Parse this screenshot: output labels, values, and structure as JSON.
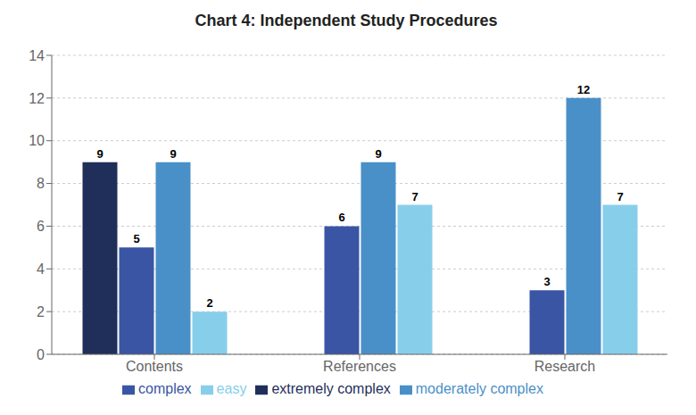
{
  "chart_data": {
    "type": "bar",
    "title": "Chart 4: Independent Study Procedures",
    "categories": [
      "Contents",
      "References",
      "Research"
    ],
    "series": [
      {
        "name": "extremely complex",
        "color": "#1f2f5a",
        "values": [
          9,
          0,
          0
        ]
      },
      {
        "name": "complex",
        "color": "#3a55a4",
        "values": [
          5,
          6,
          3
        ]
      },
      {
        "name": "moderately complex",
        "color": "#4a90c8",
        "values": [
          9,
          9,
          12
        ]
      },
      {
        "name": "easy",
        "color": "#87ceeb",
        "values": [
          2,
          7,
          7
        ]
      }
    ],
    "ylim": [
      0,
      14
    ],
    "yticks": [
      0,
      2,
      4,
      6,
      8,
      10,
      12,
      14
    ],
    "grid": true,
    "legend": "bottom",
    "data_labels": true
  }
}
